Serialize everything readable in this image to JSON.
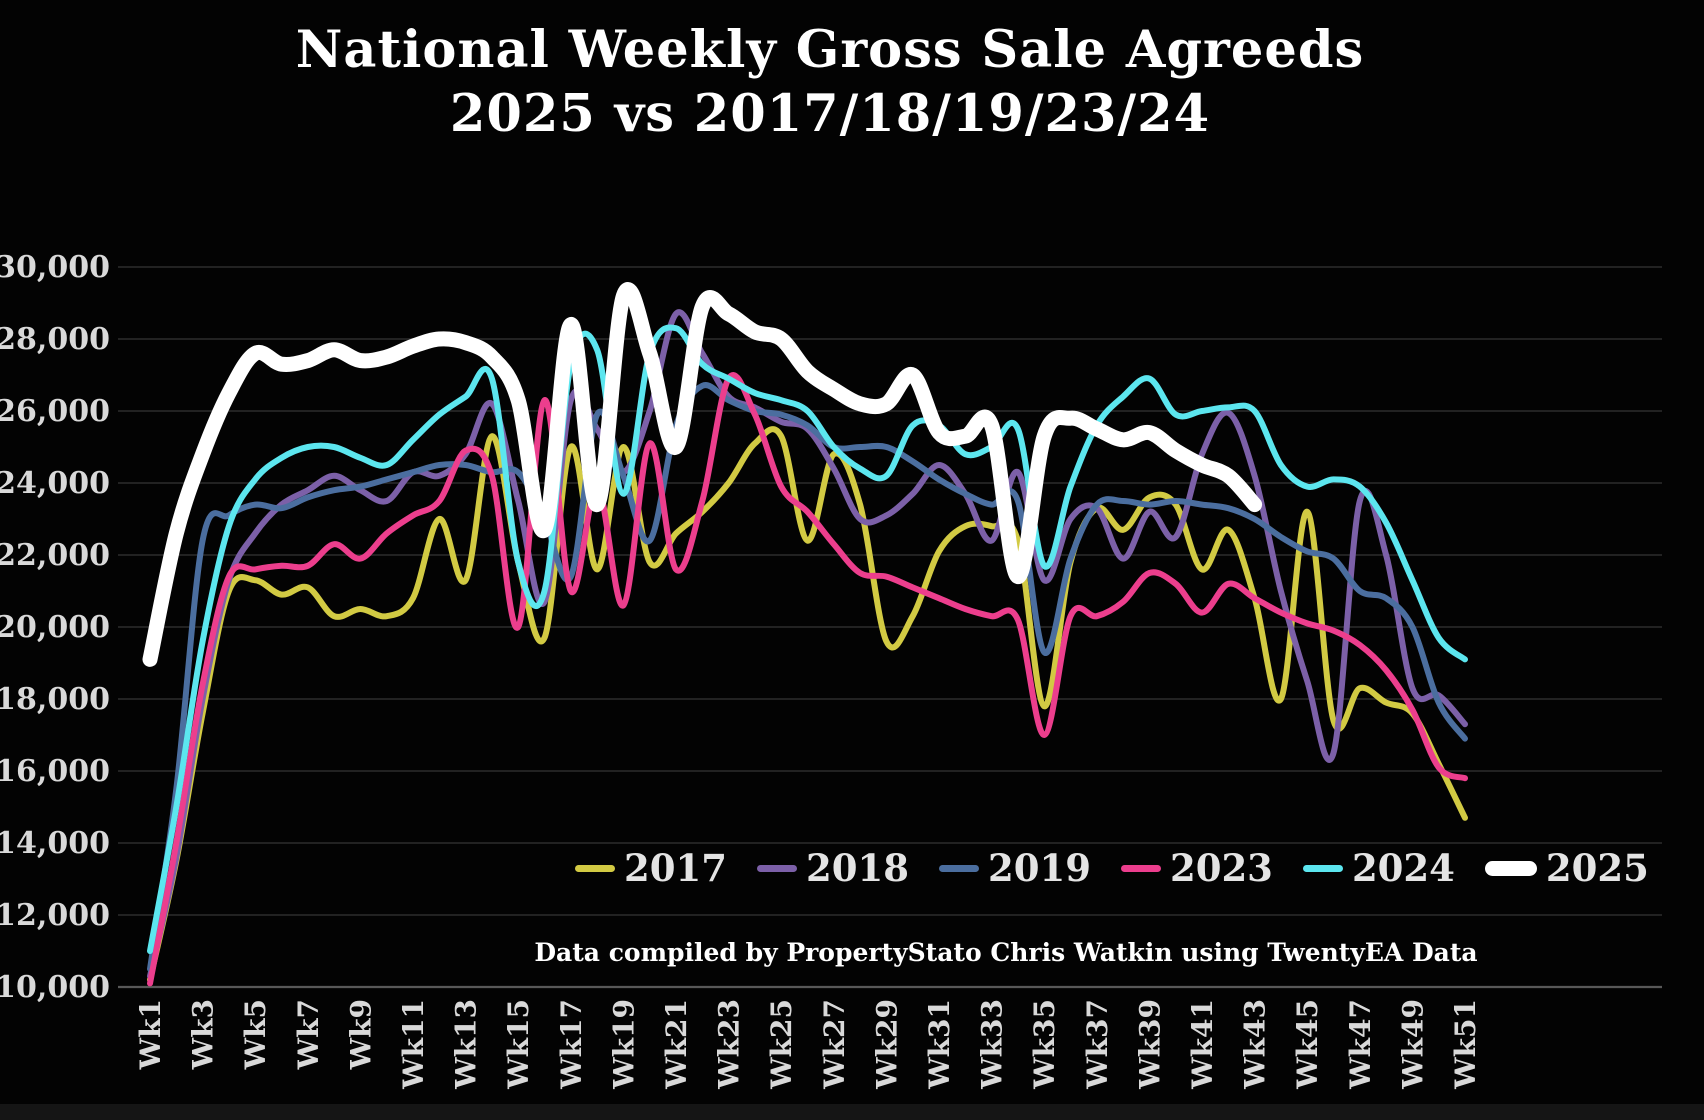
{
  "title": {
    "line1": "National Weekly Gross Sale Agreeds",
    "line2": "2025 vs 2017/18/19/23/24"
  },
  "attribution": "Data compiled by PropertyStato Chris Watkin using TwentyEA Data",
  "colors": {
    "background": "#030303",
    "gridline": "#2c2c2c",
    "axis_line": "#585858",
    "tick_label": "#d9d9d9",
    "title_text": "#ffffff",
    "legend_text": "#e4e4e4"
  },
  "chart_data": {
    "type": "line",
    "title": "National Weekly Gross Sale Agreeds 2025 vs 2017/18/19/23/24",
    "xlabel": "",
    "ylabel": "",
    "x_unit": "week",
    "week_count": 51,
    "categories": [
      "Wk1",
      "Wk3",
      "Wk5",
      "Wk7",
      "Wk9",
      "Wk11",
      "Wk13",
      "Wk15",
      "Wk17",
      "Wk19",
      "Wk21",
      "Wk23",
      "Wk25",
      "Wk27",
      "Wk29",
      "Wk31",
      "Wk33",
      "Wk35",
      "Wk37",
      "Wk39",
      "Wk41",
      "Wk43",
      "Wk45",
      "Wk47",
      "Wk49",
      "Wk51"
    ],
    "ylim": [
      10000,
      30000
    ],
    "y_ticks": [
      {
        "value": 30000,
        "label": "30,000"
      },
      {
        "value": 28000,
        "label": "28,000"
      },
      {
        "value": 26000,
        "label": "26,000"
      },
      {
        "value": 24000,
        "label": "24,000"
      },
      {
        "value": 22000,
        "label": "22,000"
      },
      {
        "value": 20000,
        "label": "20,000"
      },
      {
        "value": 18000,
        "label": "18,000"
      },
      {
        "value": 16000,
        "label": "16,000"
      },
      {
        "value": 14000,
        "label": "14,000"
      },
      {
        "value": 12000,
        "label": "12,000"
      },
      {
        "value": 10000,
        "label": "10,000"
      }
    ],
    "grid": "horizontal",
    "legend_position": "inside-bottom",
    "series": [
      {
        "name": "2017",
        "color": "#d2ca43",
        "line_width": 6,
        "values": [
          10200,
          13500,
          17600,
          21000,
          21300,
          20900,
          21100,
          20300,
          20500,
          20300,
          20800,
          23000,
          21300,
          25300,
          21800,
          19700,
          25000,
          21600,
          25000,
          21800,
          22600,
          23200,
          24000,
          25100,
          25300,
          22400,
          24800,
          23400,
          19600,
          20300,
          22100,
          22800,
          22800,
          22400,
          17800,
          21800,
          23300,
          22700,
          23600,
          23400,
          21600,
          22700,
          20800,
          18000,
          23200,
          17400,
          18300,
          17900,
          17600,
          16200,
          14700
        ]
      },
      {
        "name": "2018",
        "color": "#7c60a8",
        "line_width": 6,
        "values": [
          10300,
          13600,
          18000,
          21300,
          22600,
          23400,
          23800,
          24200,
          23800,
          23500,
          24300,
          24200,
          24800,
          26200,
          23500,
          20700,
          26300,
          25500,
          24300,
          26000,
          28700,
          27600,
          26400,
          26100,
          25700,
          25500,
          24400,
          23000,
          23100,
          23700,
          24500,
          23700,
          22400,
          24300,
          21300,
          23000,
          23300,
          21900,
          23200,
          22500,
          24800,
          25950,
          24200,
          21000,
          18500,
          16500,
          23500,
          22000,
          18300,
          18100,
          17300
        ]
      },
      {
        "name": "2019",
        "color": "#4b6e9f",
        "line_width": 6,
        "values": [
          10500,
          15500,
          22400,
          23100,
          23400,
          23300,
          23600,
          23800,
          23900,
          24100,
          24300,
          24500,
          24500,
          24300,
          24300,
          23000,
          21400,
          25900,
          24200,
          22400,
          25600,
          26700,
          26300,
          26000,
          25900,
          25600,
          25000,
          25000,
          25000,
          24600,
          24100,
          23700,
          23400,
          23500,
          19300,
          21900,
          23400,
          23500,
          23400,
          23500,
          23400,
          23300,
          23000,
          22500,
          22100,
          21900,
          21000,
          20800,
          20000,
          17900,
          16900
        ]
      },
      {
        "name": "2023",
        "color": "#ec3e8d",
        "line_width": 6,
        "values": [
          10100,
          14000,
          18400,
          21400,
          21600,
          21700,
          21700,
          22300,
          21900,
          22600,
          23100,
          23500,
          24900,
          24200,
          20000,
          26300,
          21000,
          23900,
          20600,
          25100,
          21600,
          23500,
          26900,
          25900,
          23900,
          23200,
          22300,
          21500,
          21400,
          21100,
          20800,
          20500,
          20300,
          20200,
          17000,
          20300,
          20300,
          20700,
          21500,
          21200,
          20400,
          21200,
          20800,
          20400,
          20100,
          19900,
          19500,
          18800,
          17700,
          16100,
          15800
        ]
      },
      {
        "name": "2024",
        "color": "#5ce6ef",
        "line_width": 6,
        "values": [
          11000,
          15000,
          19600,
          22800,
          24100,
          24700,
          25000,
          25000,
          24700,
          24500,
          25200,
          25900,
          26400,
          26900,
          21800,
          21000,
          27300,
          27700,
          23700,
          27600,
          28300,
          27300,
          26900,
          26500,
          26300,
          26000,
          25000,
          24400,
          24200,
          25600,
          25600,
          24800,
          25000,
          25500,
          21700,
          23900,
          25600,
          26400,
          26900,
          25900,
          26000,
          26100,
          26000,
          24500,
          23900,
          24100,
          23900,
          22900,
          21300,
          19700,
          19100
        ]
      },
      {
        "name": "2025",
        "color": "#ffffff",
        "line_width": 15,
        "values": [
          19100,
          22600,
          24800,
          26500,
          27600,
          27300,
          27400,
          27700,
          27400,
          27500,
          27800,
          28000,
          27900,
          27500,
          26300,
          22700,
          28400,
          23400,
          29200,
          27600,
          25000,
          28900,
          28700,
          28200,
          28000,
          27100,
          26600,
          26200,
          26200,
          27000,
          25400,
          25300,
          25600,
          21400,
          25300,
          25800,
          25500,
          25200,
          25400,
          24900,
          24500,
          24200,
          23400
        ]
      }
    ]
  }
}
